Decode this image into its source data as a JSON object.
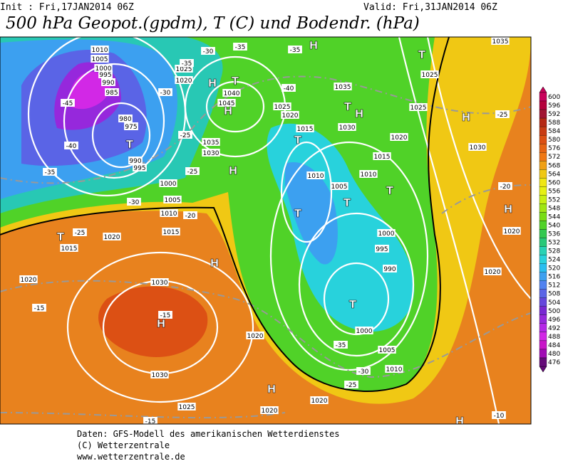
{
  "header": {
    "init": "Init : Fri,17JAN2014 06Z",
    "valid": "Valid: Fri,31JAN2014 06Z",
    "title": "500 hPa Geopot.(gpdm), T (C) und Bodendr. (hPa)"
  },
  "footer": [
    "Daten: GFS-Modell des amerikanischen Wetterdienstes",
    "(C) Wetterzentrale",
    "www.wetterzentrale.de"
  ],
  "colorbar": {
    "levels": [
      600,
      596,
      592,
      588,
      584,
      580,
      576,
      572,
      568,
      564,
      560,
      556,
      552,
      548,
      544,
      540,
      536,
      532,
      528,
      524,
      520,
      516,
      512,
      508,
      504,
      500,
      496,
      492,
      488,
      484,
      480,
      476
    ],
    "colors": [
      "#c8005a",
      "#b4003c",
      "#a01432",
      "#b42814",
      "#c83c14",
      "#dc5014",
      "#e66414",
      "#f07814",
      "#f0a014",
      "#f0c814",
      "#f0e614",
      "#e6f014",
      "#c8f014",
      "#a0e614",
      "#78dc14",
      "#50d228",
      "#32c850",
      "#28c878",
      "#28d2b4",
      "#28d2dc",
      "#28bef0",
      "#3ca0f0",
      "#5082f0",
      "#5a64e6",
      "#6446dc",
      "#7828d2",
      "#9628dc",
      "#b428e6",
      "#d228e6",
      "#c814c8",
      "#a00ab4",
      "#640a78"
    ]
  },
  "map_labels": {
    "isobars": [
      "1010",
      "1005",
      "1000",
      "995",
      "990",
      "985",
      "980",
      "975",
      "990",
      "995",
      "1025",
      "1020",
      "1040",
      "1045",
      "1035",
      "1030",
      "1000",
      "1005",
      "1010",
      "1015",
      "1020",
      "1015",
      "1020",
      "1030",
      "1030",
      "1025",
      "1020",
      "1020",
      "1020",
      "1025",
      "1020",
      "1015",
      "1010",
      "1005",
      "1010",
      "1015",
      "1020",
      "1025",
      "1030",
      "1035",
      "1000",
      "995",
      "990",
      "1000",
      "1005",
      "1010",
      "1020",
      "1030",
      "1025",
      "1035",
      "1020"
    ],
    "temperatures": [
      "-45",
      "-40",
      "-35",
      "-30",
      "-35",
      "-30",
      "-25",
      "-25",
      "-20",
      "-30",
      "-35",
      "-35",
      "-40",
      "-35",
      "-30",
      "-25",
      "-15",
      "-15",
      "-15",
      "-25",
      "-20",
      "-10",
      "-25"
    ],
    "centers": [
      "H",
      "T",
      "H",
      "T",
      "H",
      "T",
      "H",
      "T",
      "T",
      "T",
      "T",
      "T",
      "H",
      "H",
      "H",
      "H",
      "H",
      "T",
      "H",
      "T",
      "H"
    ]
  }
}
